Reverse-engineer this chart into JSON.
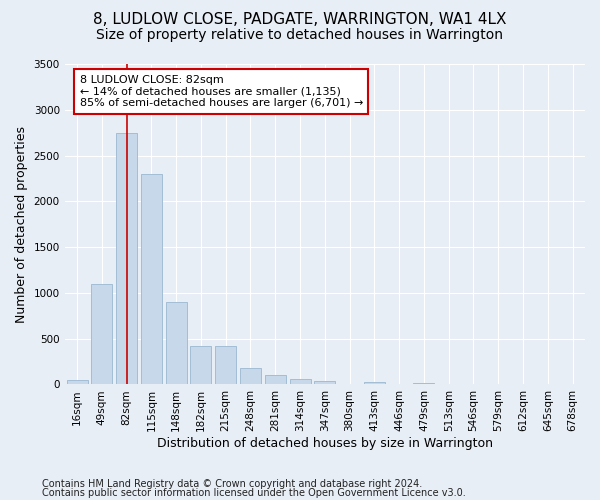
{
  "title": "8, LUDLOW CLOSE, PADGATE, WARRINGTON, WA1 4LX",
  "subtitle": "Size of property relative to detached houses in Warrington",
  "xlabel": "Distribution of detached houses by size in Warrington",
  "ylabel": "Number of detached properties",
  "categories": [
    "16sqm",
    "49sqm",
    "82sqm",
    "115sqm",
    "148sqm",
    "182sqm",
    "215sqm",
    "248sqm",
    "281sqm",
    "314sqm",
    "347sqm",
    "380sqm",
    "413sqm",
    "446sqm",
    "479sqm",
    "513sqm",
    "546sqm",
    "579sqm",
    "612sqm",
    "645sqm",
    "678sqm"
  ],
  "values": [
    50,
    1100,
    2750,
    2300,
    900,
    420,
    420,
    175,
    100,
    55,
    40,
    0,
    30,
    0,
    15,
    0,
    0,
    0,
    0,
    0,
    0
  ],
  "bar_color": "#c8d8eb",
  "bar_edge_color": "#9ab8d0",
  "red_line_index": 2,
  "red_line_color": "#cc0000",
  "ylim": [
    0,
    3500
  ],
  "yticks": [
    0,
    500,
    1000,
    1500,
    2000,
    2500,
    3000,
    3500
  ],
  "annotation_text": "8 LUDLOW CLOSE: 82sqm\n← 14% of detached houses are smaller (1,135)\n85% of semi-detached houses are larger (6,701) →",
  "annotation_box_color": "#ffffff",
  "annotation_box_edge_color": "#cc0000",
  "footer_line1": "Contains HM Land Registry data © Crown copyright and database right 2024.",
  "footer_line2": "Contains public sector information licensed under the Open Government Licence v3.0.",
  "background_color": "#e8eef6",
  "plot_background_color": "#e8eef6",
  "title_fontsize": 11,
  "subtitle_fontsize": 10,
  "axis_label_fontsize": 9,
  "tick_fontsize": 7.5,
  "annotation_fontsize": 8,
  "footer_fontsize": 7
}
